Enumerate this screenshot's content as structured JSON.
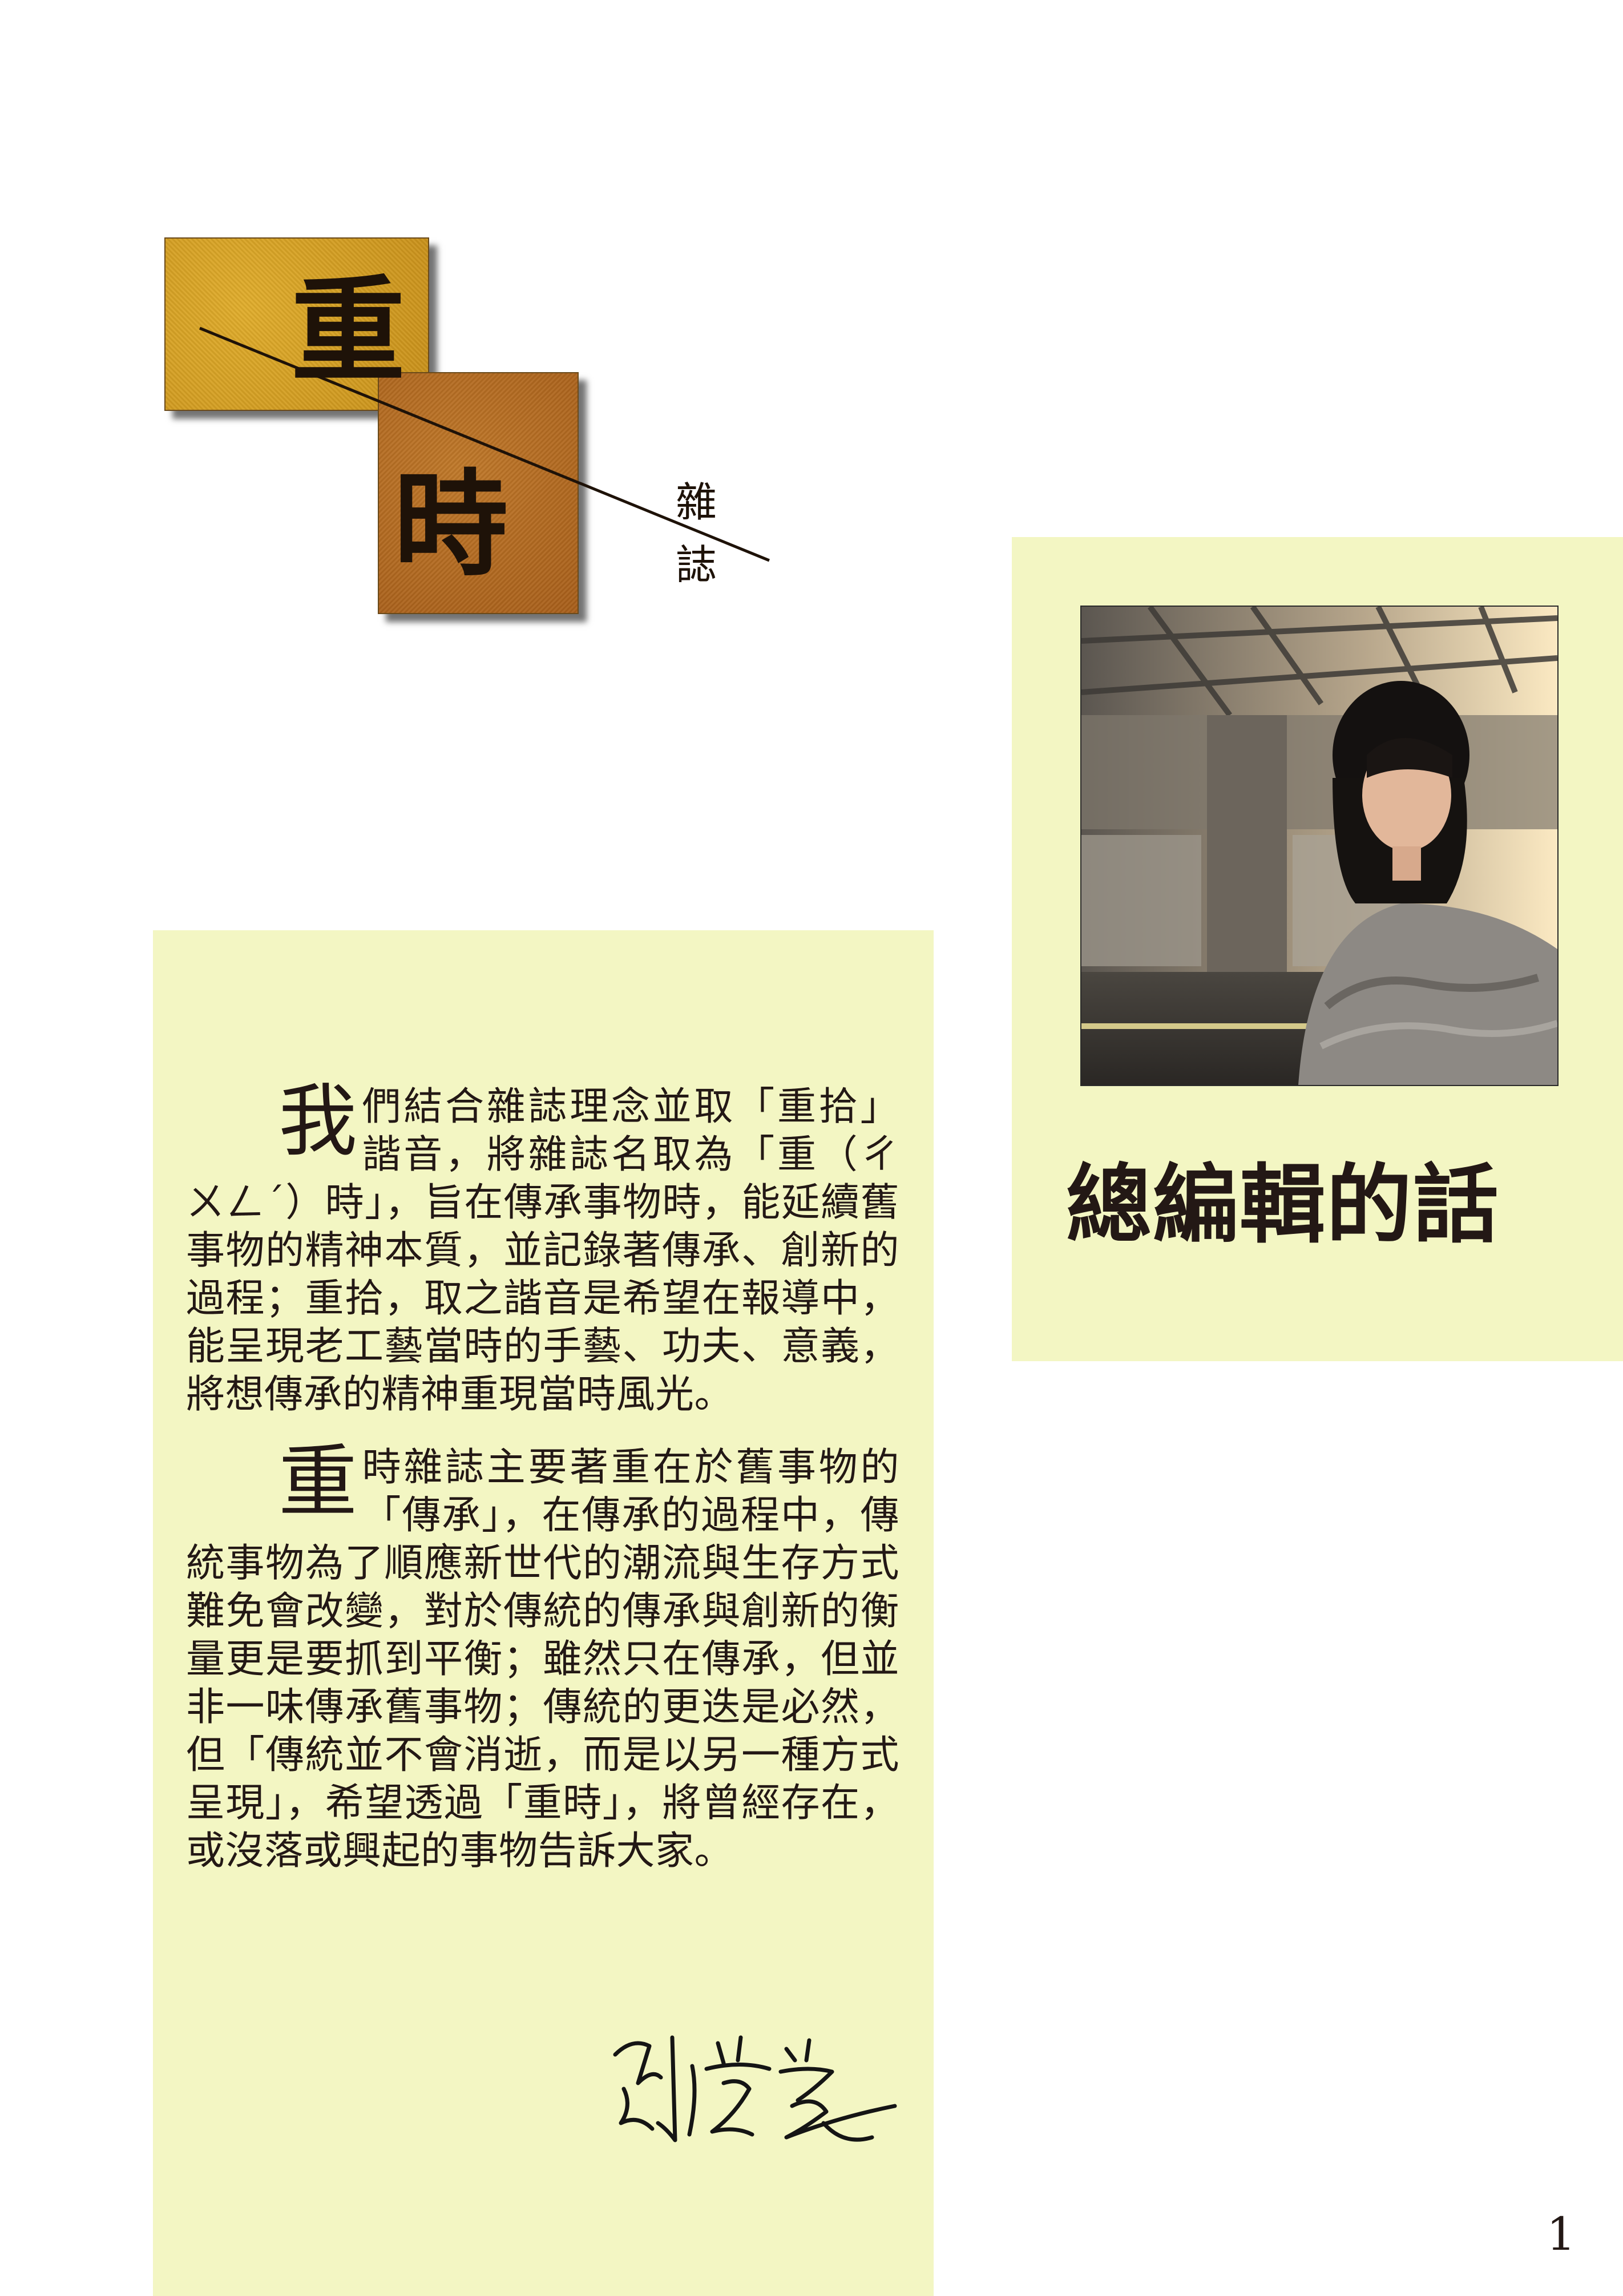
{
  "logo": {
    "title_char_1": "重",
    "title_char_2": "時",
    "subtitle_char_1": "雜",
    "subtitle_char_2": "誌",
    "tile_colors": [
      "#d49f24",
      "#b46c22"
    ]
  },
  "editor_note": {
    "title": "總編輯的話",
    "photo_icon": "portrait-photo-icon",
    "paragraphs": [
      {
        "dropcap": "我",
        "text": "們結合雜誌理念並取「重拾」諧音，將雜誌名取為「重（ㄔㄨㄥˊ）時」，旨在傳承事物時，能延續舊事物的精神本質，並記錄著傳承、創新的過程；重拾，取之諧音是希望在報導中，能呈現老工藝當時的手藝、功夫、意義，將想傳承的精神重現當時風光。"
      },
      {
        "dropcap": "重",
        "text": "時雜誌主要著重在於舊事物的「傳承」，在傳承的過程中，傳統事物為了順應新世代的潮流與生存方式難免會改變，對於傳統的傳承與創新的衡量更是要抓到平衡；雖然只在傳承，但並非一味傳承舊事物；傳統的更迭是必然，但「傳統並不會消逝，而是以另一種方式呈現」，希望透過「重時」，將曾經存在，或沒落或興起的事物告訴大家。"
      }
    ],
    "signature": "劉芳瑩",
    "panel_color": "#f3f6c3"
  },
  "page": {
    "number": "1"
  }
}
